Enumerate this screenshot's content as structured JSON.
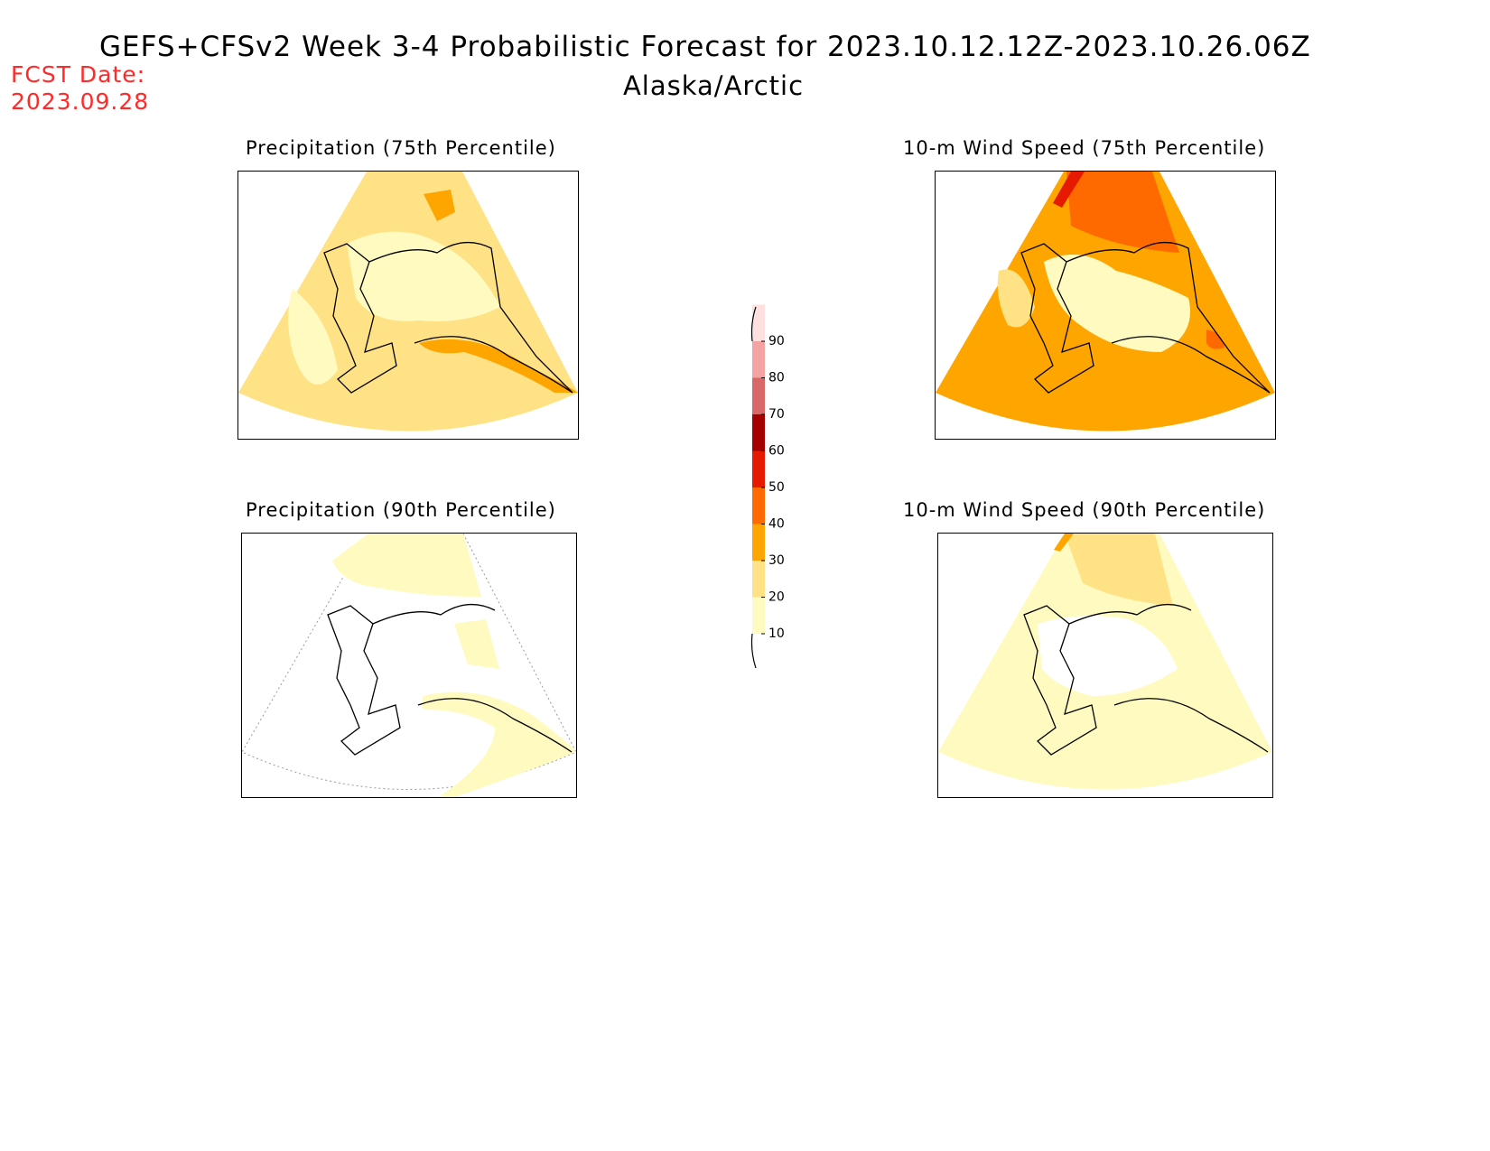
{
  "header": {
    "title": "GEFS+CFSv2 Week 3-4 Probabilistic Forecast for 2023.10.12.12Z-2023.10.26.06Z",
    "subtitle": "Alaska/Arctic",
    "fcst_label": "FCST Date:",
    "fcst_date": "2023.09.28"
  },
  "panels": [
    {
      "id": "precip75",
      "title": "Precipitation (75th Percentile)"
    },
    {
      "id": "wind75",
      "title": "10-m Wind Speed (75th Percentile)"
    },
    {
      "id": "precip90",
      "title": "Precipitation (90th Percentile)"
    },
    {
      "id": "wind90",
      "title": "10-m Wind Speed (90th Percentile)"
    }
  ],
  "colorbar": {
    "levels": [
      "10",
      "20",
      "30",
      "40",
      "50",
      "60",
      "70",
      "80",
      "90"
    ],
    "colors": {
      "10": "#fffbc0",
      "20": "#ffe285",
      "30": "#ffa500",
      "40": "#ff6a00",
      "50": "#e61a00",
      "60": "#a50000",
      "70": "#d86767",
      "80": "#f4a3a3",
      "90": "#ffe0e0"
    }
  }
}
